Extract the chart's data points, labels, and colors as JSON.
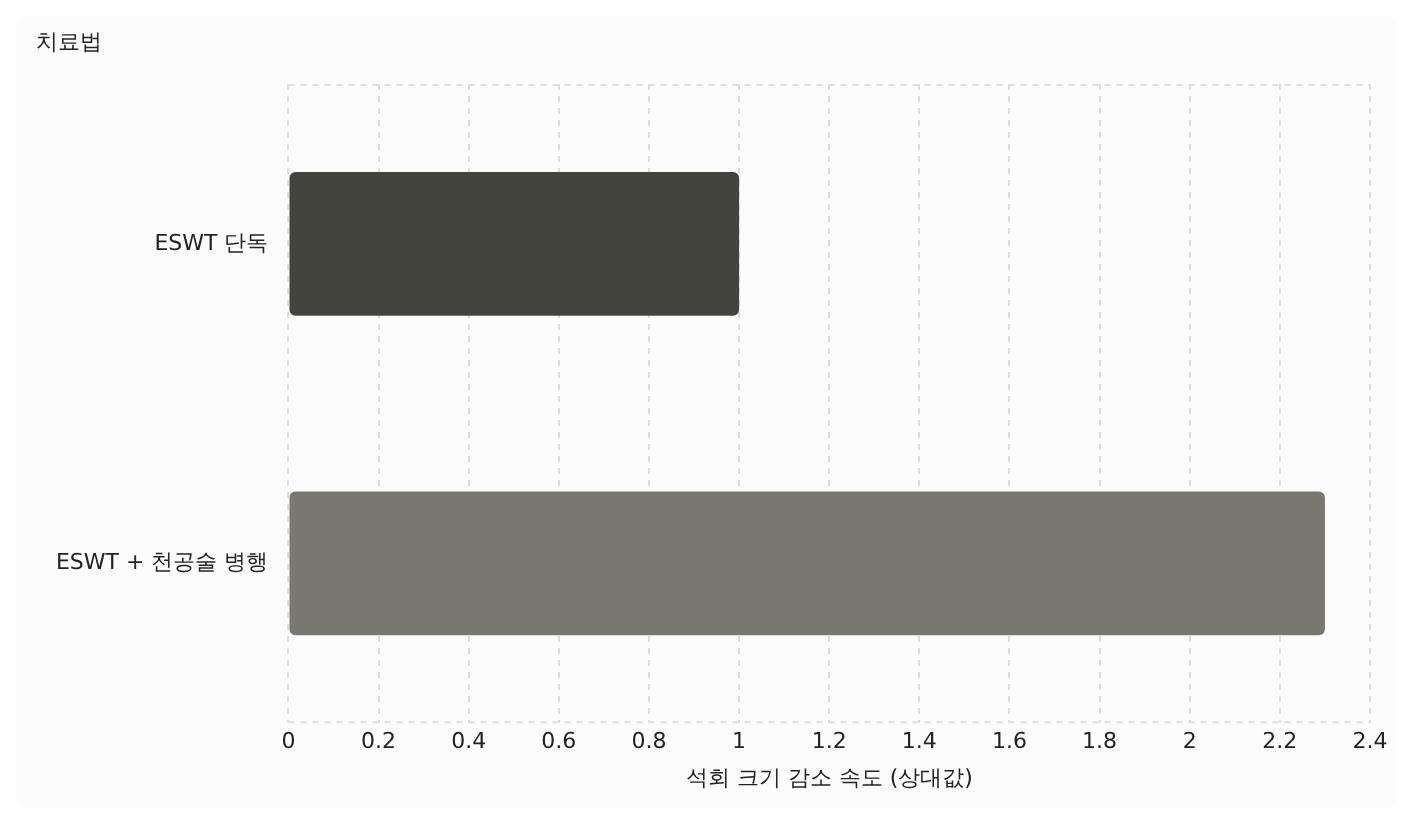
{
  "chart_data": {
    "type": "bar",
    "orientation": "horizontal",
    "ylabel": "치료법",
    "xlabel": "석회 크기 감소 속도 (상대값)",
    "categories": [
      "ESWT 단독",
      "ESWT + 천공술 병행"
    ],
    "values": [
      1.0,
      2.3
    ],
    "colors": [
      "#43443d",
      "#797870"
    ],
    "xlim": [
      0,
      2.4
    ],
    "xticks": [
      0,
      0.2,
      0.4,
      0.6,
      0.8,
      1,
      1.2,
      1.4,
      1.6,
      1.8,
      2,
      2.2,
      2.4
    ],
    "grid": "x",
    "legend": false
  }
}
